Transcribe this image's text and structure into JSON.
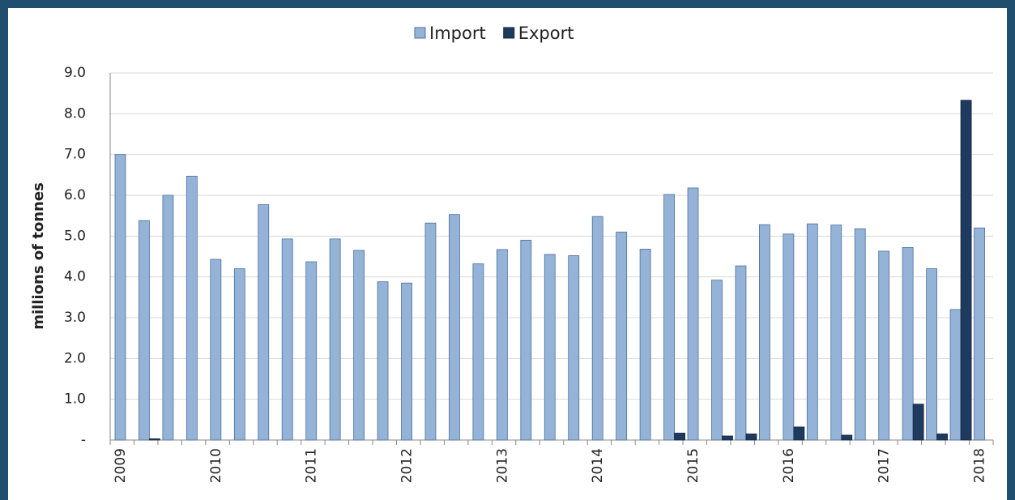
{
  "chart_data": {
    "type": "bar",
    "y_label": "millions of tonnes",
    "categories": [
      "2009",
      null,
      null,
      null,
      "2010",
      null,
      null,
      null,
      "2011",
      null,
      null,
      null,
      "2012",
      null,
      null,
      null,
      "2013",
      null,
      null,
      null,
      "2014",
      null,
      null,
      null,
      "2015",
      null,
      null,
      null,
      "2016",
      null,
      null,
      null,
      "2017",
      null,
      null,
      null,
      "2018"
    ],
    "series": [
      {
        "name": "Import",
        "color": "#95b3d7",
        "values": [
          7.0,
          5.38,
          6.0,
          6.47,
          4.43,
          4.2,
          5.77,
          4.93,
          4.37,
          4.93,
          4.65,
          3.88,
          3.85,
          5.32,
          5.53,
          4.32,
          4.67,
          4.9,
          4.55,
          4.52,
          5.48,
          5.1,
          4.68,
          6.02,
          6.18,
          3.92,
          4.27,
          5.28,
          5.05,
          5.3,
          5.27,
          5.18,
          4.63,
          4.72,
          4.2,
          3.2,
          5.2
        ]
      },
      {
        "name": "Export",
        "color": "#1f3a5f",
        "values": [
          0,
          0.03,
          0,
          0,
          0,
          0,
          0,
          0,
          0,
          0,
          0,
          0,
          0,
          0,
          0,
          0,
          0,
          0,
          0,
          0,
          0,
          0,
          0,
          0.17,
          0,
          0.1,
          0.15,
          0,
          0.32,
          0,
          0.12,
          0,
          0,
          0.88,
          0.15,
          8.33,
          0
        ]
      }
    ],
    "ylim": [
      0,
      9
    ],
    "yticks": [
      {
        "value": 0,
        "label": "-"
      },
      {
        "value": 1,
        "label": "1.0"
      },
      {
        "value": 2,
        "label": "2.0"
      },
      {
        "value": 3,
        "label": "3.0"
      },
      {
        "value": 4,
        "label": "4.0"
      },
      {
        "value": 5,
        "label": "5.0"
      },
      {
        "value": 6,
        "label": "6.0"
      },
      {
        "value": 7,
        "label": "7.0"
      },
      {
        "value": 8,
        "label": "8.0"
      },
      {
        "value": 9,
        "label": "9.0"
      }
    ],
    "grid": true,
    "legend": "top"
  }
}
